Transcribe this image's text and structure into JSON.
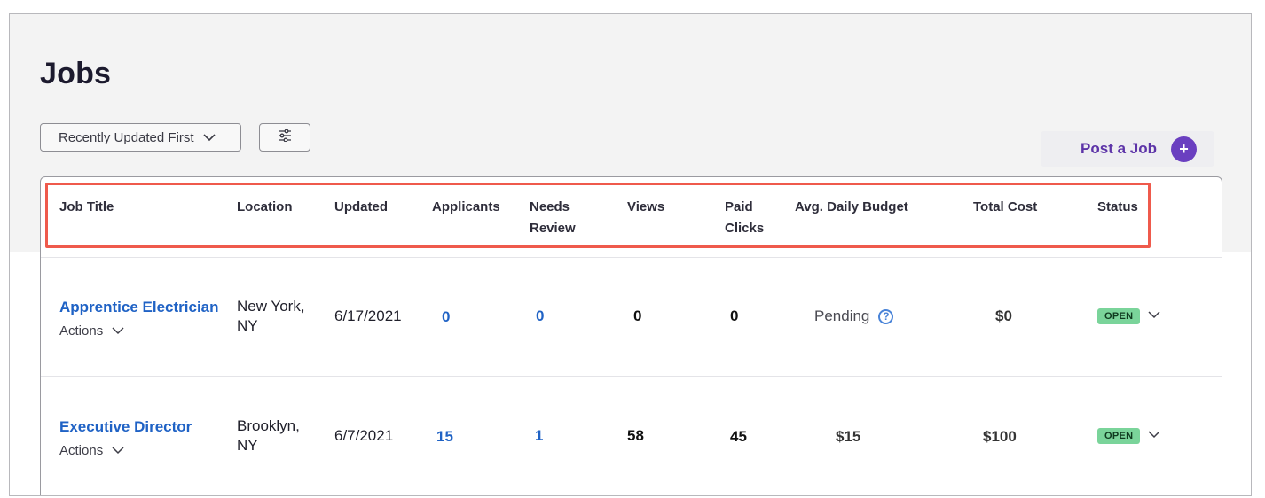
{
  "page": {
    "title": "Jobs"
  },
  "toolbar": {
    "sort_label": "Recently Updated First",
    "post_job_label": "Post a Job",
    "post_job_icon": "+"
  },
  "table": {
    "headers": {
      "job_title": "Job Title",
      "location": "Location",
      "updated": "Updated",
      "applicants": "Applicants",
      "needs_review_1": "Needs",
      "needs_review_2": "Review",
      "views": "Views",
      "paid_clicks_1": "Paid",
      "paid_clicks_2": "Clicks",
      "avg_daily_budget": "Avg. Daily Budget",
      "total_cost": "Total Cost",
      "status": "Status"
    },
    "rows": [
      {
        "title": "Apprentice Electrician",
        "actions": "Actions",
        "location_line1": "New York,",
        "location_line2": "NY",
        "updated": "6/17/2021",
        "applicants": "0",
        "needs_review": "0",
        "views": "0",
        "paid_clicks": "0",
        "avg_daily_budget": "Pending",
        "help_icon": "?",
        "total_cost": "$0",
        "status": "OPEN"
      },
      {
        "title": "Executive Director",
        "actions": "Actions",
        "location_line1": "Brooklyn,",
        "location_line2": "NY",
        "updated": "6/7/2021",
        "applicants": "15",
        "needs_review": "1",
        "views": "58",
        "paid_clicks": "45",
        "avg_daily_budget": "$15",
        "total_cost": "$100",
        "status": "OPEN"
      }
    ]
  },
  "colors": {
    "accent": "#6a3fc0",
    "link": "#1f62c5",
    "highlight": "#ef5a4c",
    "status_open": "#7ad49a"
  }
}
